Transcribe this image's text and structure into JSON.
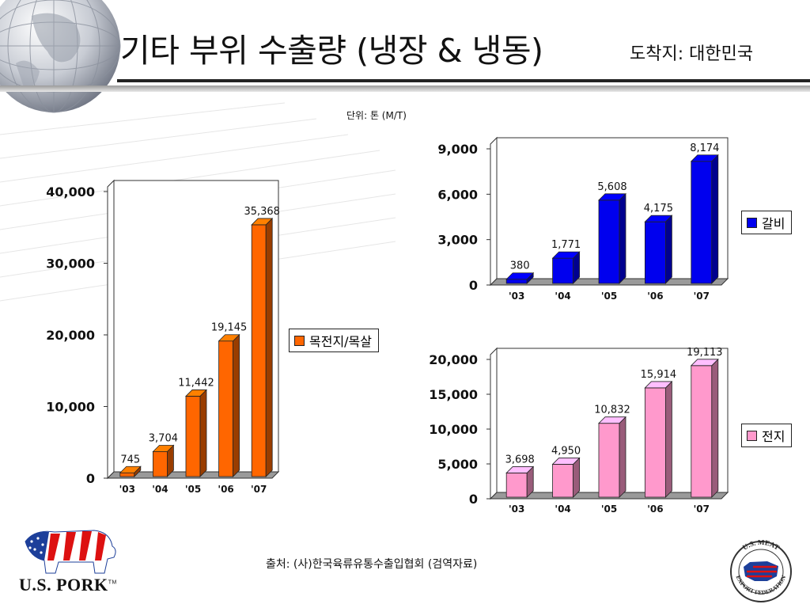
{
  "title": "기타 부위 수출량 (냉장 & 냉동)",
  "subtitle": "도착지: 대한민국",
  "unit_note": "단위: 톤 (M/T)",
  "source_note": "출처: (사)한국육류유통수출입협회 (검역자료)",
  "logos": {
    "left": "U.S. PORK",
    "left_tm": "TM",
    "right": "U.S. MEAT EXPORT FEDERATION"
  },
  "colors": {
    "orange": "#FF6600",
    "blue": "#0000EE",
    "pink": "#FF99CC"
  },
  "chart_data": [
    {
      "type": "bar",
      "categories": [
        "'03",
        "'04",
        "'05",
        "'06",
        "'07"
      ],
      "series": [
        {
          "name": "목전지/목살",
          "values": [
            745,
            3704,
            11442,
            19145,
            35368
          ]
        }
      ],
      "value_labels": [
        "745",
        "3,704",
        "11,442",
        "19,145",
        "35,368"
      ],
      "yticks": [
        "0",
        "10,000",
        "20,000",
        "30,000",
        "40,000"
      ],
      "ylim": [
        0,
        40000
      ],
      "legend": "right",
      "grid": false
    },
    {
      "type": "bar",
      "categories": [
        "'03",
        "'04",
        "'05",
        "'06",
        "'07"
      ],
      "series": [
        {
          "name": "갈비",
          "values": [
            380,
            1771,
            5608,
            4175,
            8174
          ]
        }
      ],
      "value_labels": [
        "380",
        "1,771",
        "5,608",
        "4,175",
        "8,174"
      ],
      "yticks": [
        "0",
        "3,000",
        "6,000",
        "9,000"
      ],
      "ylim": [
        0,
        9000
      ],
      "legend": "right",
      "grid": false
    },
    {
      "type": "bar",
      "categories": [
        "'03",
        "'04",
        "'05",
        "'06",
        "'07"
      ],
      "series": [
        {
          "name": "전지",
          "values": [
            3698,
            4950,
            10832,
            15914,
            19113
          ]
        }
      ],
      "value_labels": [
        "3,698",
        "4,950",
        "10,832",
        "15,914",
        "19,113"
      ],
      "yticks": [
        "0",
        "5,000",
        "10,000",
        "15,000",
        "20,000"
      ],
      "ylim": [
        0,
        20000
      ],
      "legend": "right",
      "grid": false
    }
  ]
}
